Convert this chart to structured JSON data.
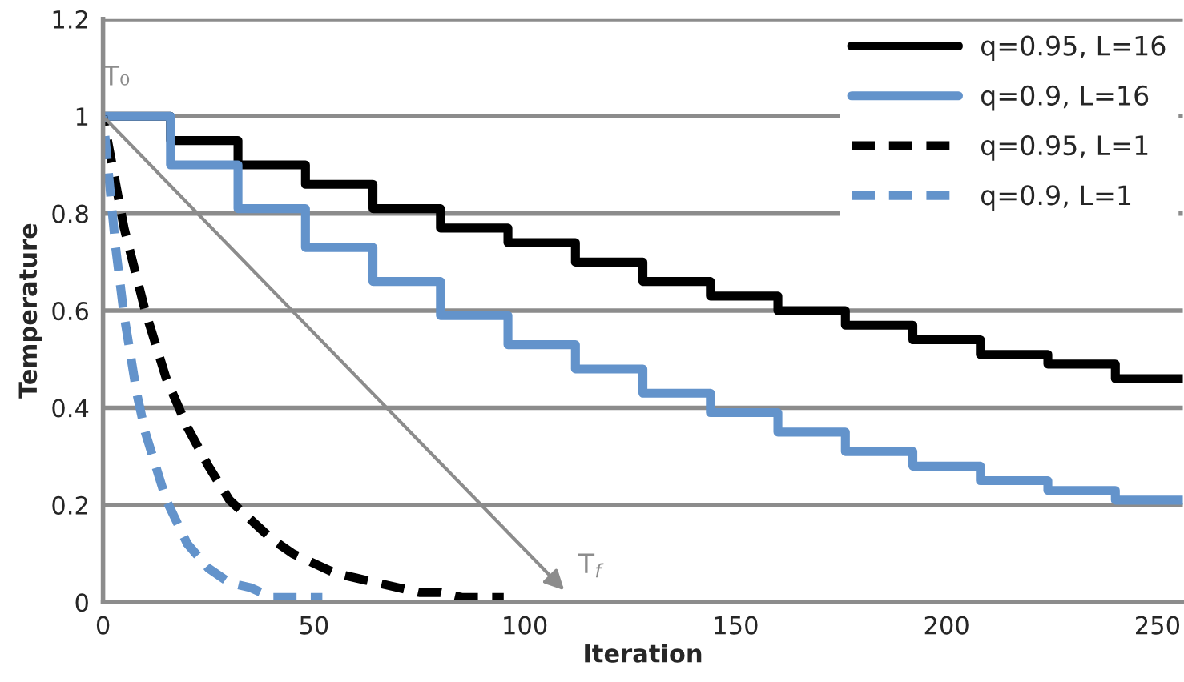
{
  "chart_data": {
    "type": "line",
    "xlabel": "Iteration",
    "ylabel": "Temperature",
    "xlim": [
      0,
      256
    ],
    "xticks": [
      0,
      50,
      100,
      150,
      200,
      250
    ],
    "ylim": [
      0,
      1.2
    ],
    "yticks": [
      0,
      0.2,
      0.4,
      0.6,
      0.8,
      1,
      1.2
    ],
    "grid": "y",
    "legend": "top right",
    "series": [
      {
        "name": "q=0.95, L=16",
        "color": "#000000",
        "type": "step",
        "line_style": "solid",
        "x": [
          0,
          16,
          32,
          48,
          64,
          80,
          96,
          112,
          128,
          144,
          160,
          176,
          192,
          208,
          224,
          240,
          256
        ],
        "values": [
          1,
          0.95,
          0.9,
          0.86,
          0.81,
          0.77,
          0.74,
          0.7,
          0.66,
          0.63,
          0.6,
          0.57,
          0.54,
          0.51,
          0.49,
          0.46,
          0.46
        ]
      },
      {
        "name": "q=0.9, L=16",
        "color": "#6393cb",
        "type": "step",
        "line_style": "solid",
        "x": [
          0,
          16,
          32,
          48,
          64,
          80,
          96,
          112,
          128,
          144,
          160,
          176,
          192,
          208,
          224,
          240,
          256
        ],
        "values": [
          1,
          0.9,
          0.81,
          0.73,
          0.66,
          0.59,
          0.53,
          0.48,
          0.43,
          0.39,
          0.35,
          0.31,
          0.28,
          0.25,
          0.23,
          0.21,
          0.21
        ]
      },
      {
        "name": "q=0.95, L=1",
        "color": "#000000",
        "line_style": "dashed",
        "x": [
          0,
          5,
          10,
          15,
          20,
          25,
          30,
          35,
          40,
          45,
          50,
          55,
          60,
          65,
          70,
          75,
          80,
          85,
          90,
          95
        ],
        "values": [
          1,
          0.77,
          0.6,
          0.46,
          0.36,
          0.28,
          0.21,
          0.17,
          0.13,
          0.1,
          0.08,
          0.06,
          0.05,
          0.04,
          0.03,
          0.02,
          0.02,
          0.01,
          0.01,
          0.01
        ]
      },
      {
        "name": "q=0.9, L=1",
        "color": "#6393cb",
        "line_style": "dashed",
        "x": [
          0,
          3,
          5,
          8,
          10,
          15,
          20,
          25,
          30,
          35,
          40,
          45,
          50,
          52
        ],
        "values": [
          1,
          0.73,
          0.59,
          0.43,
          0.35,
          0.21,
          0.12,
          0.07,
          0.04,
          0.03,
          0.01,
          0.01,
          0.01,
          0.01
        ]
      }
    ],
    "annotations": [
      {
        "text": "T₀",
        "x": 0,
        "y": 1
      },
      "T$_{f}$"
    ]
  }
}
